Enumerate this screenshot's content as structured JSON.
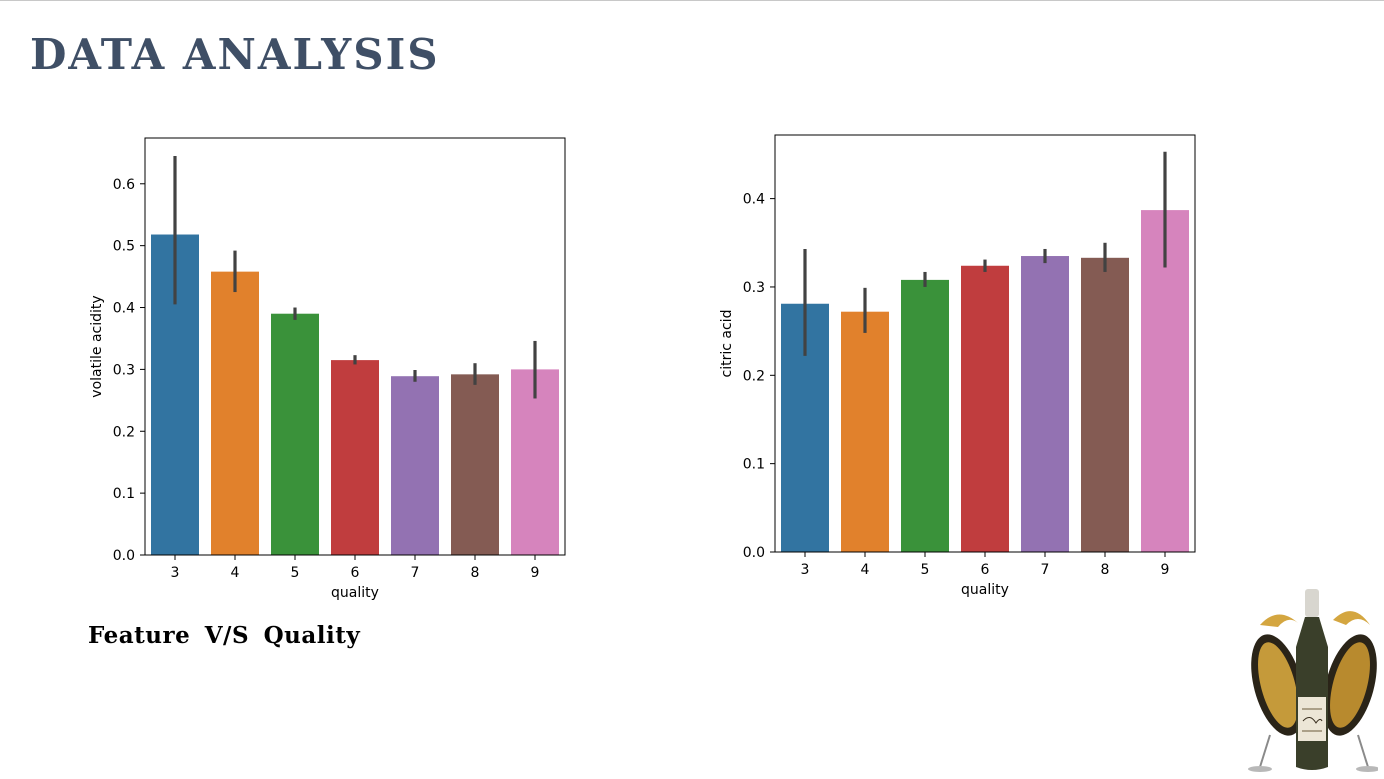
{
  "page": {
    "title": "DATA ANALYSIS",
    "caption": "Feature  V/S  Quality"
  },
  "colors": {
    "title": "#3f4f66",
    "bar_palette": [
      "#3274a1",
      "#e1812c",
      "#3a923a",
      "#c03d3e",
      "#9372b2",
      "#845b53",
      "#d684bd"
    ],
    "error_bar": "#424242"
  },
  "chart_data": [
    {
      "type": "bar",
      "categories": [
        "3",
        "4",
        "5",
        "6",
        "7",
        "8",
        "9"
      ],
      "values": [
        0.518,
        0.458,
        0.39,
        0.315,
        0.289,
        0.292,
        0.3
      ],
      "ci_low": [
        0.405,
        0.425,
        0.38,
        0.308,
        0.28,
        0.275,
        0.253
      ],
      "ci_high": [
        0.645,
        0.492,
        0.4,
        0.323,
        0.299,
        0.31,
        0.346
      ],
      "title": "",
      "xlabel": "quality",
      "ylabel": "volatile acidity",
      "ylim": [
        0,
        0.674
      ],
      "yticks": [
        0.0,
        0.1,
        0.2,
        0.3,
        0.4,
        0.5,
        0.6
      ],
      "ytick_labels": [
        "0.0",
        "0.1",
        "0.2",
        "0.3",
        "0.4",
        "0.5",
        "0.6"
      ],
      "grid": false
    },
    {
      "type": "bar",
      "categories": [
        "3",
        "4",
        "5",
        "6",
        "7",
        "8",
        "9"
      ],
      "values": [
        0.281,
        0.272,
        0.308,
        0.324,
        0.335,
        0.333,
        0.387
      ],
      "ci_low": [
        0.222,
        0.248,
        0.3,
        0.317,
        0.327,
        0.317,
        0.322
      ],
      "ci_high": [
        0.343,
        0.299,
        0.317,
        0.331,
        0.343,
        0.35,
        0.453
      ],
      "title": "",
      "xlabel": "quality",
      "ylabel": "citric acid",
      "ylim": [
        0,
        0.472
      ],
      "yticks": [
        0.0,
        0.1,
        0.2,
        0.3,
        0.4
      ],
      "ytick_labels": [
        "0.0",
        "0.1",
        "0.2",
        "0.3",
        "0.4"
      ],
      "grid": false
    }
  ]
}
